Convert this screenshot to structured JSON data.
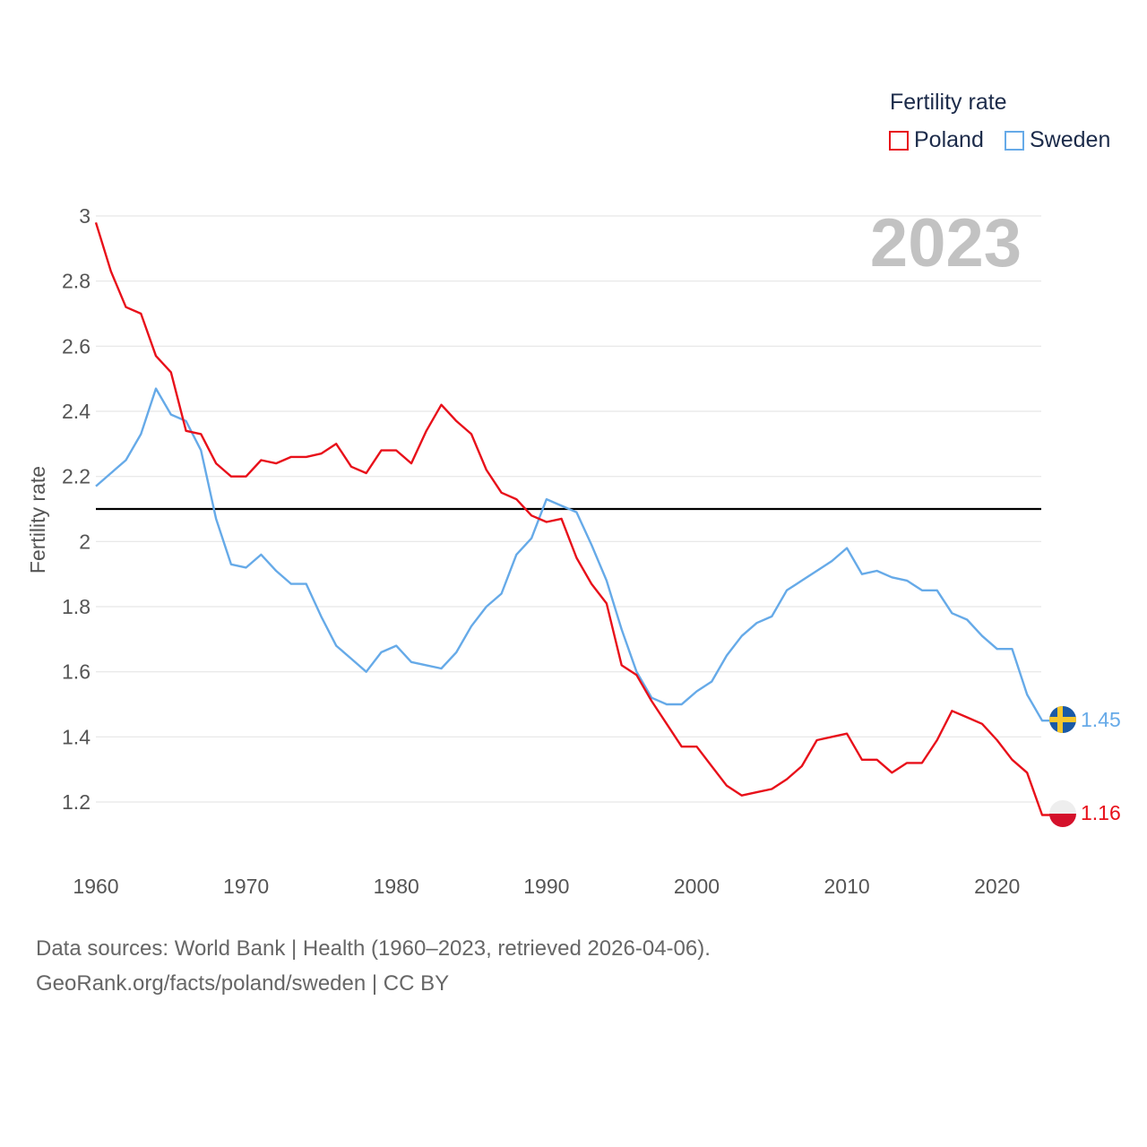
{
  "legend": {
    "title": "Fertility rate",
    "items": [
      {
        "label": "Poland",
        "color": "#e8101a"
      },
      {
        "label": "Sweden",
        "color": "#66aae8"
      }
    ]
  },
  "year_label": "2023",
  "footer": {
    "line1": "Data sources: World Bank | Health (1960–2023, retrieved 2026-04-06).",
    "line2": "GeoRank.org/facts/poland/sweden | CC BY"
  },
  "chart_data": {
    "type": "line",
    "title": "Fertility rate",
    "xlabel": "",
    "ylabel": "Fertility rate",
    "xlim": [
      1960,
      2023
    ],
    "ylim": [
      1.05,
      3.0
    ],
    "x_ticks": [
      1960,
      1970,
      1980,
      1990,
      2000,
      2010,
      2020
    ],
    "y_ticks": [
      "1.2",
      "1.4",
      "1.6",
      "1.8",
      "2",
      "2.2",
      "2.4",
      "2.6",
      "2.8",
      "3"
    ],
    "reference_line": 2.1,
    "grid": true,
    "legend_position": "top-right",
    "x": [
      1960,
      1961,
      1962,
      1963,
      1964,
      1965,
      1966,
      1967,
      1968,
      1969,
      1970,
      1971,
      1972,
      1973,
      1974,
      1975,
      1976,
      1977,
      1978,
      1979,
      1980,
      1981,
      1982,
      1983,
      1984,
      1985,
      1986,
      1987,
      1988,
      1989,
      1990,
      1991,
      1992,
      1993,
      1994,
      1995,
      1996,
      1997,
      1998,
      1999,
      2000,
      2001,
      2002,
      2003,
      2004,
      2005,
      2006,
      2007,
      2008,
      2009,
      2010,
      2011,
      2012,
      2013,
      2014,
      2015,
      2016,
      2017,
      2018,
      2019,
      2020,
      2021,
      2022,
      2023
    ],
    "series": [
      {
        "name": "Poland",
        "color": "#e8101a",
        "end_label": "1.16",
        "values": [
          2.98,
          2.83,
          2.72,
          2.7,
          2.57,
          2.52,
          2.34,
          2.33,
          2.24,
          2.2,
          2.2,
          2.25,
          2.24,
          2.26,
          2.26,
          2.27,
          2.3,
          2.23,
          2.21,
          2.28,
          2.28,
          2.24,
          2.34,
          2.42,
          2.37,
          2.33,
          2.22,
          2.15,
          2.13,
          2.08,
          2.06,
          2.07,
          1.95,
          1.87,
          1.81,
          1.62,
          1.59,
          1.51,
          1.44,
          1.37,
          1.37,
          1.31,
          1.25,
          1.22,
          1.23,
          1.24,
          1.27,
          1.31,
          1.39,
          1.4,
          1.41,
          1.33,
          1.33,
          1.29,
          1.32,
          1.32,
          1.39,
          1.48,
          1.46,
          1.44,
          1.39,
          1.33,
          1.29,
          1.16
        ]
      },
      {
        "name": "Sweden",
        "color": "#66aae8",
        "end_label": "1.45",
        "values": [
          2.17,
          2.21,
          2.25,
          2.33,
          2.47,
          2.39,
          2.37,
          2.28,
          2.07,
          1.93,
          1.92,
          1.96,
          1.91,
          1.87,
          1.87,
          1.77,
          1.68,
          1.64,
          1.6,
          1.66,
          1.68,
          1.63,
          1.62,
          1.61,
          1.66,
          1.74,
          1.8,
          1.84,
          1.96,
          2.01,
          2.13,
          2.11,
          2.09,
          1.99,
          1.88,
          1.73,
          1.6,
          1.52,
          1.5,
          1.5,
          1.54,
          1.57,
          1.65,
          1.71,
          1.75,
          1.77,
          1.85,
          1.88,
          1.91,
          1.94,
          1.98,
          1.9,
          1.91,
          1.89,
          1.88,
          1.85,
          1.85,
          1.78,
          1.76,
          1.71,
          1.67,
          1.67,
          1.53,
          1.45
        ]
      }
    ]
  }
}
